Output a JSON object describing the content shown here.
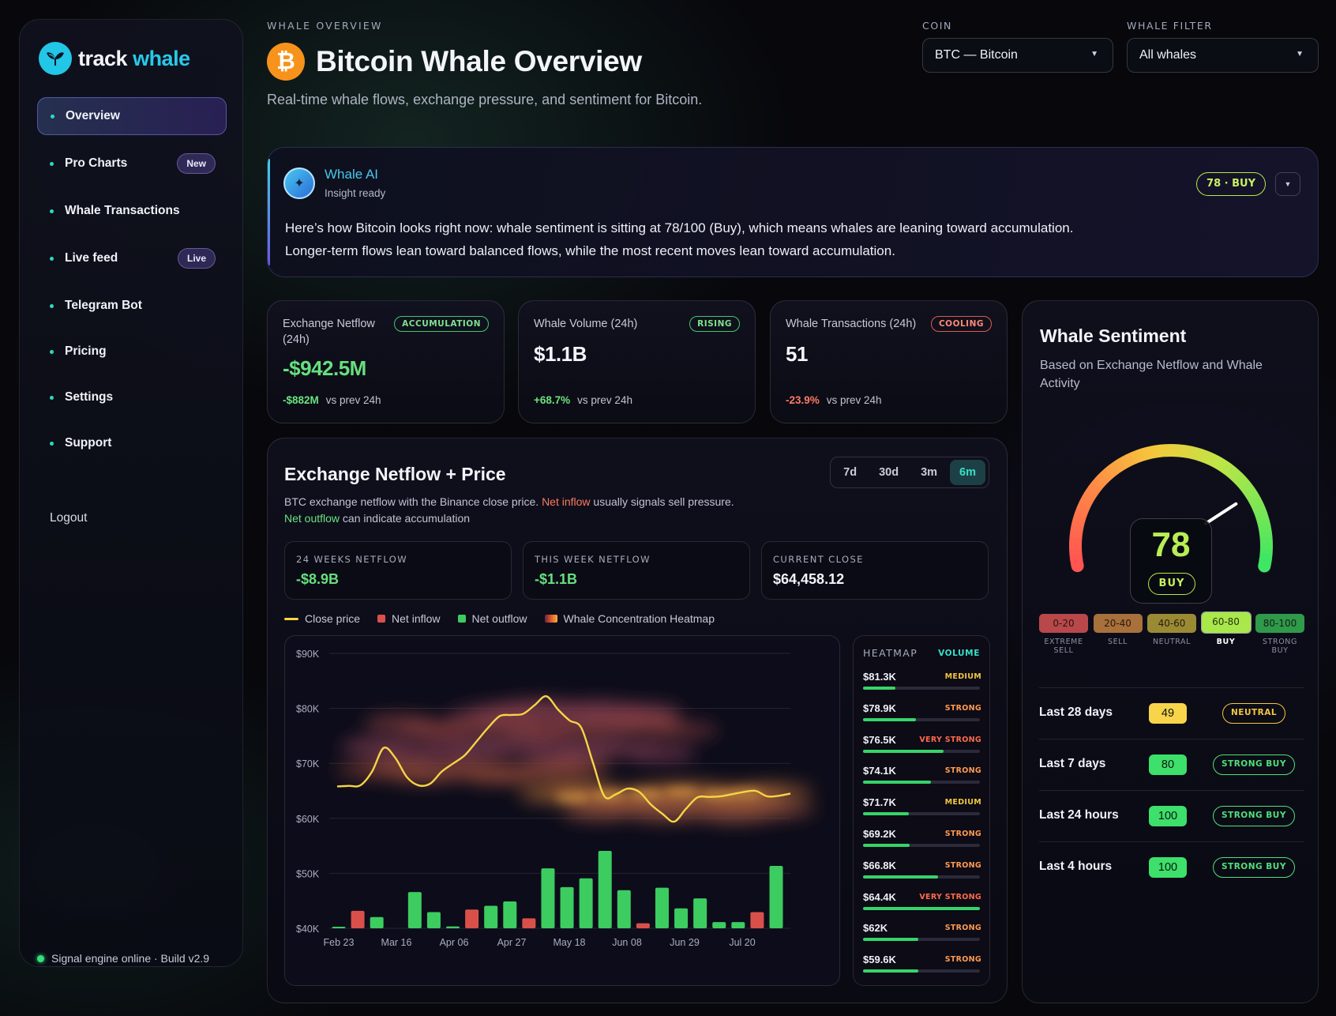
{
  "brand": {
    "name_part1": "track",
    "name_part2": "whale"
  },
  "sidebar": {
    "items": [
      {
        "label": "Overview"
      },
      {
        "label": "Pro Charts",
        "badge": "New"
      },
      {
        "label": "Whale Transactions"
      },
      {
        "label": "Live feed",
        "badge": "Live"
      },
      {
        "label": "Telegram Bot"
      },
      {
        "label": "Pricing"
      },
      {
        "label": "Settings"
      },
      {
        "label": "Support"
      }
    ],
    "logout": "Logout",
    "status": "Signal engine online · Build v2.9"
  },
  "header": {
    "eyebrow": "WHALE OVERVIEW",
    "title": "Bitcoin Whale Overview",
    "subtitle": "Real-time whale flows, exchange pressure, and sentiment for Bitcoin.",
    "coin_label": "COIN",
    "coin_value": "BTC — Bitcoin",
    "filter_label": "WHALE FILTER",
    "filter_value": "All whales"
  },
  "ai": {
    "name": "Whale AI",
    "status": "Insight ready",
    "pill": "78 · BUY",
    "line1": "Here’s how Bitcoin looks right now: whale sentiment is sitting at 78/100 (Buy), which means whales are leaning toward accumulation.",
    "line2": "Longer-term flows lean toward balanced flows, while the most recent moves lean toward accumulation."
  },
  "stats": [
    {
      "label": "Exchange Netflow (24h)",
      "badge": "ACCUMULATION",
      "value": "-$942.5M",
      "delta": "-$882M",
      "delta_suffix": "vs prev 24h"
    },
    {
      "label": "Whale Volume (24h)",
      "badge": "RISING",
      "value": "$1.1B",
      "delta": "+68.7%",
      "delta_suffix": "vs prev 24h"
    },
    {
      "label": "Whale Transactions (24h)",
      "badge": "COOLING",
      "value": "51",
      "delta": "-23.9%",
      "delta_suffix": "vs prev 24h"
    }
  ],
  "chart": {
    "title": "Exchange Netflow + Price",
    "desc_a": "BTC exchange netflow with the Binance close price. ",
    "desc_inflow": "Net inflow",
    "desc_b": " usually signals sell pressure.",
    "desc_outflow": "Net outflow",
    "desc_c": " can indicate accumulation",
    "ranges": [
      "7d",
      "30d",
      "3m",
      "6m"
    ],
    "active_range": "6m",
    "mini": [
      {
        "label": "24 WEEKS NETFLOW",
        "value": "-$8.9B"
      },
      {
        "label": "THIS WEEK NETFLOW",
        "value": "-$1.1B"
      },
      {
        "label": "CURRENT CLOSE",
        "value": "$64,458.12"
      }
    ],
    "legend": [
      "Close price",
      "Net inflow",
      "Net outflow",
      "Whale Concentration Heatmap"
    ]
  },
  "chart_data": {
    "type": "line",
    "title": "Exchange Netflow + Price",
    "y_ticks": [
      "$90K",
      "$80K",
      "$70K",
      "$60K",
      "$50K",
      "$40K"
    ],
    "ylim": [
      40000,
      90000
    ],
    "x_ticks": [
      "Feb 23",
      "Mar 16",
      "Apr 06",
      "Apr 27",
      "May 18",
      "Jun 08",
      "Jun 29",
      "Jul 20"
    ],
    "price_series": {
      "name": "Close price",
      "values": [
        65800,
        65900,
        66000,
        68500,
        72800,
        71000,
        67500,
        66000,
        66300,
        68500,
        70000,
        71500,
        74000,
        76500,
        78600,
        78800,
        79000,
        80600,
        82200,
        79800,
        77800,
        76500,
        70200,
        64000,
        64400,
        65400,
        64800,
        62500,
        60800,
        59400,
        61700,
        63800,
        63900,
        64000,
        64400,
        64800,
        65000,
        64000,
        64100,
        64500
      ]
    },
    "netflow_bars": [
      {
        "v": 0.2,
        "t": "out"
      },
      {
        "v": 2.8,
        "t": "in"
      },
      {
        "v": 1.8,
        "t": "out"
      },
      {
        "v": 0,
        "t": "out"
      },
      {
        "v": 5.8,
        "t": "out"
      },
      {
        "v": 2.6,
        "t": "out"
      },
      {
        "v": 0.3,
        "t": "out"
      },
      {
        "v": 3.0,
        "t": "in"
      },
      {
        "v": 3.6,
        "t": "out"
      },
      {
        "v": 4.3,
        "t": "out"
      },
      {
        "v": 1.6,
        "t": "in"
      },
      {
        "v": 9.6,
        "t": "out"
      },
      {
        "v": 6.6,
        "t": "out"
      },
      {
        "v": 8.0,
        "t": "out"
      },
      {
        "v": 12.4,
        "t": "out"
      },
      {
        "v": 6.1,
        "t": "out"
      },
      {
        "v": 0.8,
        "t": "in"
      },
      {
        "v": 6.5,
        "t": "out"
      },
      {
        "v": 3.2,
        "t": "out"
      },
      {
        "v": 4.8,
        "t": "out"
      },
      {
        "v": 1.0,
        "t": "out"
      },
      {
        "v": 1.0,
        "t": "out"
      },
      {
        "v": 2.6,
        "t": "in"
      },
      {
        "v": 10.0,
        "t": "out"
      }
    ],
    "heatmap_rows": [
      {
        "price": "$81.3K",
        "level": "MEDIUM",
        "fill": 0.28
      },
      {
        "price": "$78.9K",
        "level": "STRONG",
        "fill": 0.45
      },
      {
        "price": "$76.5K",
        "level": "VERY STRONG",
        "fill": 0.69
      },
      {
        "price": "$74.1K",
        "level": "STRONG",
        "fill": 0.58
      },
      {
        "price": "$71.7K",
        "level": "MEDIUM",
        "fill": 0.39
      },
      {
        "price": "$69.2K",
        "level": "STRONG",
        "fill": 0.4
      },
      {
        "price": "$66.8K",
        "level": "STRONG",
        "fill": 0.64
      },
      {
        "price": "$64.4K",
        "level": "VERY STRONG",
        "fill": 1.0
      },
      {
        "price": "$62K",
        "level": "STRONG",
        "fill": 0.47
      },
      {
        "price": "$59.6K",
        "level": "STRONG",
        "fill": 0.47
      }
    ]
  },
  "heatmap": {
    "title": "HEATMAP",
    "mode": "VOLUME"
  },
  "sentiment": {
    "title": "Whale Sentiment",
    "subtitle": "Based on Exchange Netflow and Whale Activity",
    "score": "78",
    "score_value": 78,
    "label": "BUY",
    "bands": [
      {
        "range": "0-20",
        "name": "EXTREME SELL",
        "color": "#b8484a"
      },
      {
        "range": "20-40",
        "name": "SELL",
        "color": "#a8703a"
      },
      {
        "range": "40-60",
        "name": "NEUTRAL",
        "color": "#9a8a34"
      },
      {
        "range": "60-80",
        "name": "BUY",
        "color": "#a8e84a",
        "active": true
      },
      {
        "range": "80-100",
        "name": "STRONG BUY",
        "color": "#2e9a4a"
      }
    ],
    "periods": [
      {
        "name": "Last 28 days",
        "score": "49",
        "tag": "NEUTRAL",
        "score_color": "#f8d44a",
        "tag_color": "#f2c640"
      },
      {
        "name": "Last 7 days",
        "score": "80",
        "tag": "STRONG BUY",
        "score_color": "#3ce06a",
        "tag_color": "#4ee07a"
      },
      {
        "name": "Last 24 hours",
        "score": "100",
        "tag": "STRONG BUY",
        "score_color": "#3ce06a",
        "tag_color": "#4ee07a"
      },
      {
        "name": "Last 4 hours",
        "score": "100",
        "tag": "STRONG BUY",
        "score_color": "#3ce06a",
        "tag_color": "#4ee07a"
      }
    ]
  },
  "colors": {
    "accent": "#29c8ea",
    "price_line": "#f5d547",
    "inflow": "#d9504a",
    "outflow": "#3ccc60",
    "buy": "#b8ee54"
  }
}
